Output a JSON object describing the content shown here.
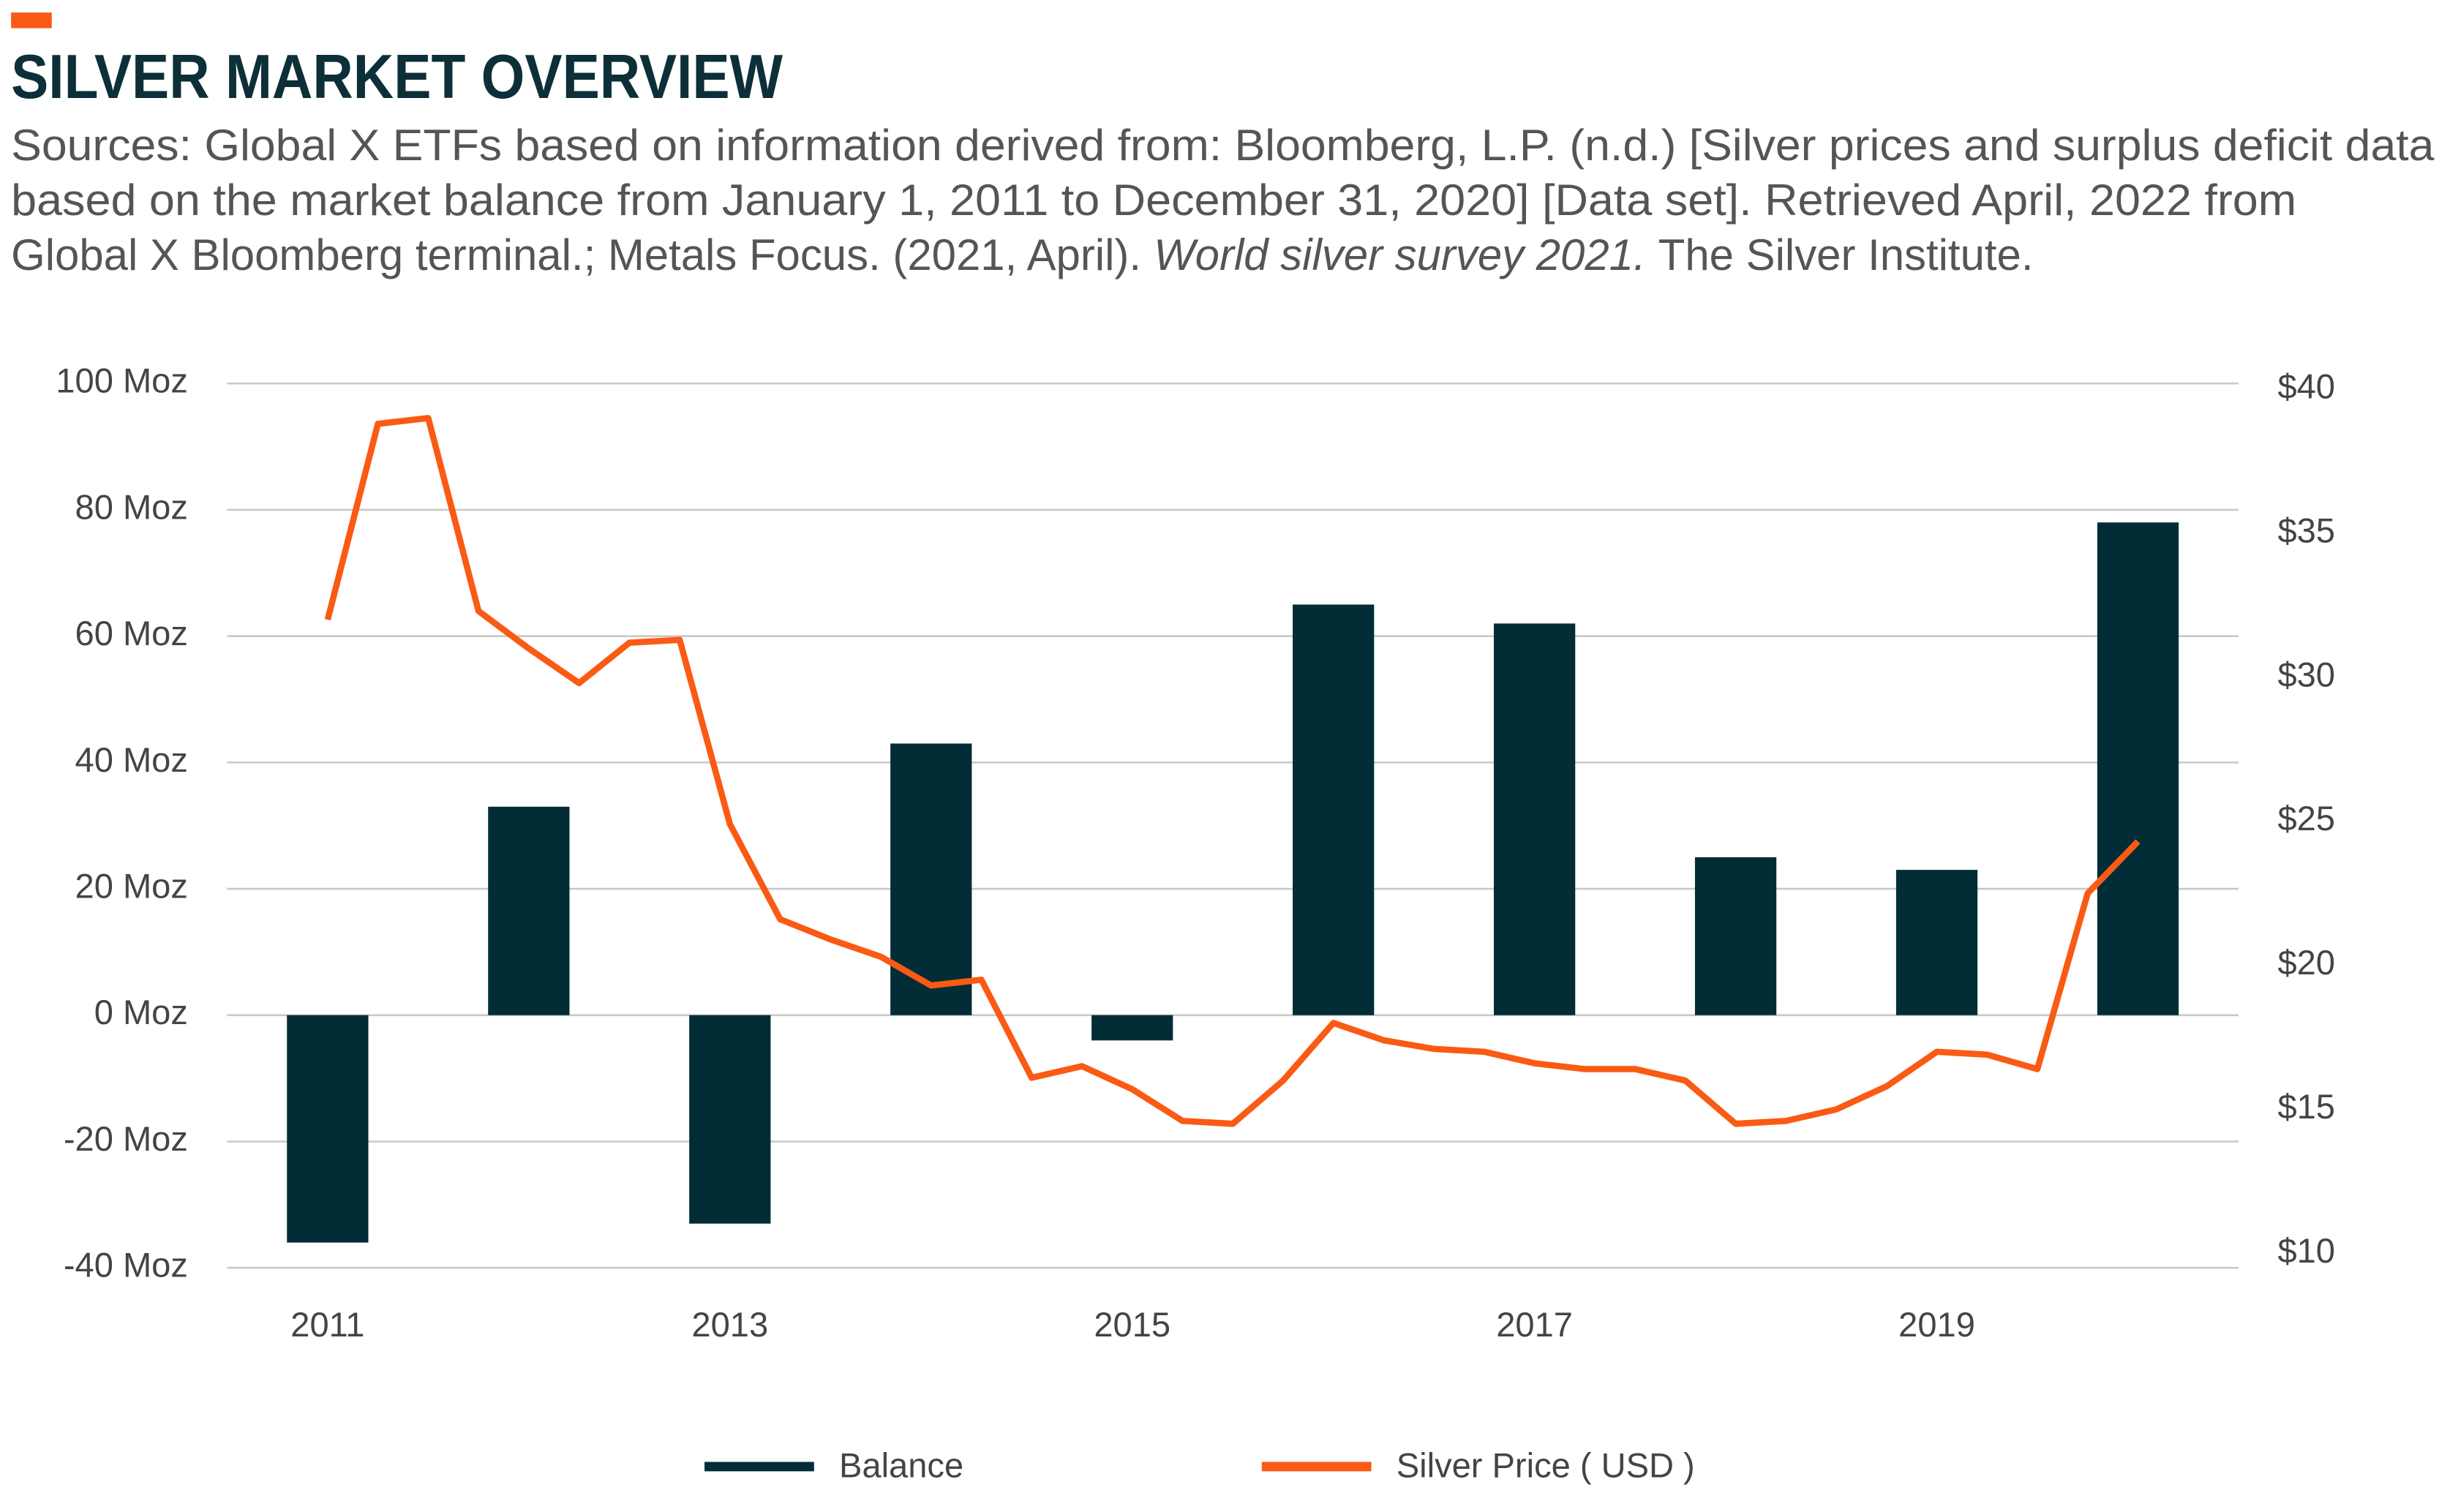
{
  "chart_data": {
    "type": "bar-line",
    "title": "SILVER MARKET OVERVIEW",
    "subtitle": [
      "Sources: Global X ETFs based on information derived from: Bloomberg, L.P. (n.d.) [Silver prices and surplus deficit data",
      "based on the market balance from January 1, 2011 to December 31, 2020] [Data set]. Retrieved April, 2022 from",
      "Global X Bloomberg terminal.; Metals Focus. (2021, April).",
      "World silver survey 2021.",
      "The Silver Institute."
    ],
    "xlim": [
      2010.5,
      2020.5
    ],
    "xticks": [
      2011,
      2013,
      2015,
      2017,
      2019
    ],
    "ylim": [
      -40,
      100
    ],
    "yticks": [
      {
        "value": -40,
        "label": "-40 Moz"
      },
      {
        "value": -20,
        "label": "-20 Moz"
      },
      {
        "value": 0,
        "label": "0 Moz"
      },
      {
        "value": 20,
        "label": "20 Moz"
      },
      {
        "value": 40,
        "label": "40 Moz"
      },
      {
        "value": 60,
        "label": "60 Moz"
      },
      {
        "value": 80,
        "label": "80 Moz"
      },
      {
        "value": 100,
        "label": "100 Moz"
      }
    ],
    "y2lim": [
      9.5,
      40.2
    ],
    "y2ticks": [
      {
        "value": 10,
        "label": "$10"
      },
      {
        "value": 15,
        "label": "$15"
      },
      {
        "value": 20,
        "label": "$20"
      },
      {
        "value": 25,
        "label": "$25"
      },
      {
        "value": 30,
        "label": "$30"
      },
      {
        "value": 35,
        "label": "$35"
      },
      {
        "value": 40,
        "label": "$40"
      }
    ],
    "grid": true,
    "legend": "bottom",
    "series": [
      {
        "name": "Balance",
        "type": "bar",
        "color": "#022d36",
        "x": [
          2011,
          2012,
          2013,
          2014,
          2015,
          2016,
          2017,
          2018,
          2019,
          2020
        ],
        "values": [
          -36,
          33,
          -33,
          43,
          -4,
          65,
          62,
          25,
          23,
          78
        ]
      },
      {
        "name": "Silver Price ( USD )",
        "type": "line",
        "axis": "y2",
        "color": "#fa5a14",
        "x": [
          2011,
          2011.25,
          2011.5,
          2011.75,
          2012,
          2012.25,
          2012.5,
          2012.75,
          2013,
          2013.25,
          2013.5,
          2013.75,
          2014,
          2014.25,
          2014.5,
          2014.75,
          2015,
          2015.25,
          2015.5,
          2015.75,
          2016,
          2016.25,
          2016.5,
          2016.75,
          2017,
          2017.25,
          2017.5,
          2017.75,
          2018,
          2018.25,
          2018.5,
          2018.75,
          2019,
          2019.25,
          2019.5,
          2019.75,
          2020
        ],
        "values": [
          32.0,
          38.8,
          39.0,
          32.3,
          31.0,
          29.8,
          31.2,
          31.3,
          24.9,
          21.6,
          20.9,
          20.3,
          19.3,
          19.5,
          16.1,
          16.5,
          15.7,
          14.6,
          14.5,
          16.0,
          18.0,
          17.4,
          17.1,
          17.0,
          16.6,
          16.4,
          16.4,
          16.0,
          14.5,
          14.6,
          15.0,
          15.8,
          17.0,
          16.9,
          16.4,
          22.5,
          24.3
        ]
      }
    ]
  }
}
